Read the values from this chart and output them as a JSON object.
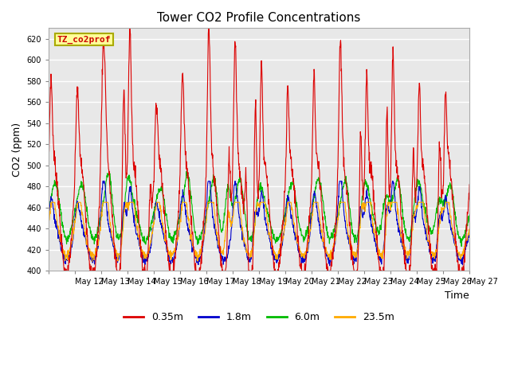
{
  "title": "Tower CO2 Profile Concentrations",
  "xlabel": "Time",
  "ylabel": "CO2 (ppm)",
  "ylim": [
    400,
    630
  ],
  "yticks": [
    400,
    420,
    440,
    460,
    480,
    500,
    520,
    540,
    560,
    580,
    600,
    620
  ],
  "xtick_labels": [
    "May 12",
    "May 13",
    "May 14",
    "May 15",
    "May 16",
    "May 17",
    "May 18",
    "May 19",
    "May 20",
    "May 21",
    "May 22",
    "May 23",
    "May 24",
    "May 25",
    "May 26",
    "May 27"
  ],
  "series_colors": [
    "#dd0000",
    "#0000cc",
    "#00bb00",
    "#ffaa00"
  ],
  "series_labels": [
    "0.35m",
    "1.8m",
    "6.0m",
    "23.5m"
  ],
  "tag_label": "TZ_co2prof",
  "tag_bg": "#ffff99",
  "tag_border": "#aaaa00",
  "tag_text_color": "#cc0000",
  "fig_facecolor": "#ffffff",
  "ax_facecolor": "#e8e8e8",
  "grid_color": "#ffffff",
  "n_days": 16,
  "pts_per_day": 96
}
